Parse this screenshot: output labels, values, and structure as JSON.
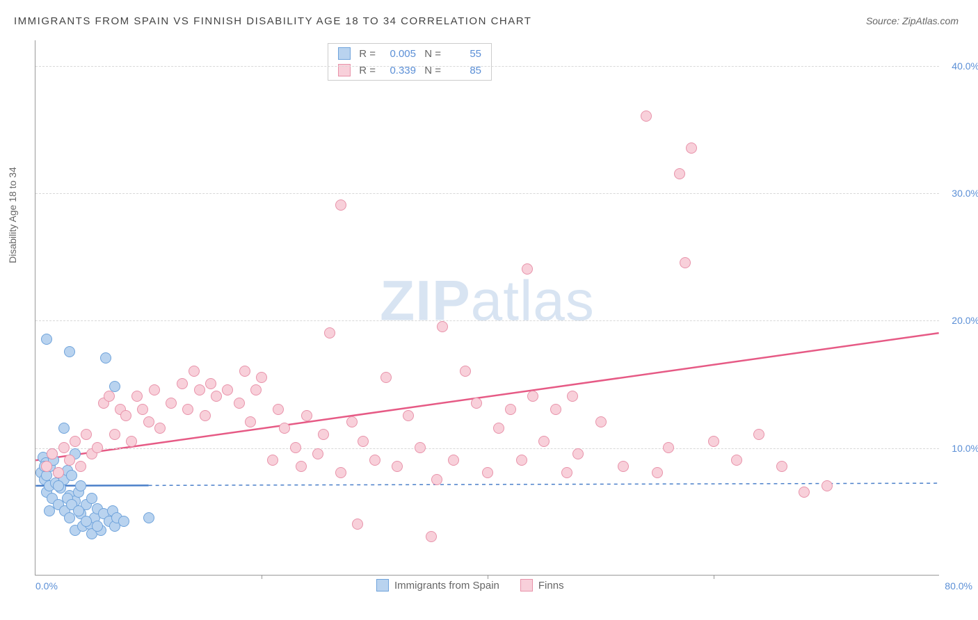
{
  "title": "IMMIGRANTS FROM SPAIN VS FINNISH DISABILITY AGE 18 TO 34 CORRELATION CHART",
  "source": "Source: ZipAtlas.com",
  "y_axis_label": "Disability Age 18 to 34",
  "watermark_a": "ZIP",
  "watermark_b": "atlas",
  "chart": {
    "type": "scatter",
    "xlim": [
      0,
      80
    ],
    "ylim": [
      0,
      42
    ],
    "x_ticks": [
      0,
      20,
      40,
      60,
      80
    ],
    "x_tick_labels": [
      "0.0%",
      "",
      "",
      "",
      "80.0%"
    ],
    "y_ticks": [
      10,
      20,
      30,
      40
    ],
    "y_tick_labels": [
      "10.0%",
      "20.0%",
      "30.0%",
      "40.0%"
    ],
    "background_color": "#ffffff",
    "grid_color": "#d8d8d8",
    "axis_color": "#999999",
    "tick_label_color": "#5b8fd6",
    "marker_radius": 8,
    "series": [
      {
        "name": "Immigrants from Spain",
        "fill": "#b9d3ef",
        "stroke": "#6fa3db",
        "trend_color": "#4a7fc9",
        "trend_dash": "5,5",
        "trend_solid_until_x": 10,
        "R": "0.005",
        "N": "55",
        "trend": {
          "y_at_xmin": 7.0,
          "y_at_xmax": 7.2
        },
        "points": [
          [
            0.5,
            8.0
          ],
          [
            0.7,
            9.2
          ],
          [
            0.8,
            7.5
          ],
          [
            0.9,
            8.8
          ],
          [
            1.0,
            6.5
          ],
          [
            1.0,
            7.8
          ],
          [
            1.2,
            7.0
          ],
          [
            1.3,
            8.5
          ],
          [
            1.5,
            6.0
          ],
          [
            1.6,
            9.0
          ],
          [
            1.8,
            7.2
          ],
          [
            2.0,
            5.5
          ],
          [
            2.0,
            8.0
          ],
          [
            2.2,
            6.8
          ],
          [
            2.5,
            7.5
          ],
          [
            2.6,
            5.0
          ],
          [
            2.8,
            8.2
          ],
          [
            3.0,
            6.2
          ],
          [
            3.0,
            4.5
          ],
          [
            3.2,
            7.8
          ],
          [
            3.5,
            5.8
          ],
          [
            3.5,
            3.5
          ],
          [
            3.8,
            6.5
          ],
          [
            4.0,
            4.8
          ],
          [
            4.0,
            7.0
          ],
          [
            4.2,
            3.8
          ],
          [
            4.5,
            5.5
          ],
          [
            4.8,
            4.0
          ],
          [
            5.0,
            6.0
          ],
          [
            5.0,
            3.2
          ],
          [
            5.2,
            4.5
          ],
          [
            5.5,
            5.2
          ],
          [
            5.8,
            3.5
          ],
          [
            6.0,
            4.8
          ],
          [
            6.2,
            17.0
          ],
          [
            6.5,
            4.2
          ],
          [
            6.8,
            5.0
          ],
          [
            7.0,
            3.8
          ],
          [
            7.0,
            14.8
          ],
          [
            7.2,
            4.5
          ],
          [
            1.0,
            18.5
          ],
          [
            2.5,
            11.5
          ],
          [
            3.0,
            17.5
          ],
          [
            3.5,
            9.5
          ],
          [
            0.8,
            8.5
          ],
          [
            1.5,
            9.5
          ],
          [
            2.0,
            7.0
          ],
          [
            2.8,
            6.0
          ],
          [
            3.2,
            5.5
          ],
          [
            3.8,
            5.0
          ],
          [
            4.5,
            4.2
          ],
          [
            5.5,
            3.8
          ],
          [
            7.8,
            4.2
          ],
          [
            10.0,
            4.5
          ],
          [
            1.2,
            5.0
          ]
        ]
      },
      {
        "name": "Finns",
        "fill": "#f8d0da",
        "stroke": "#e893aa",
        "trend_color": "#e65a85",
        "trend_dash": "",
        "trend_solid_until_x": 80,
        "R": "0.339",
        "N": "85",
        "trend": {
          "y_at_xmin": 9.0,
          "y_at_xmax": 19.0
        },
        "points": [
          [
            1.0,
            8.5
          ],
          [
            1.5,
            9.5
          ],
          [
            2.0,
            8.0
          ],
          [
            2.5,
            10.0
          ],
          [
            3.0,
            9.0
          ],
          [
            3.5,
            10.5
          ],
          [
            4.0,
            8.5
          ],
          [
            4.5,
            11.0
          ],
          [
            5.0,
            9.5
          ],
          [
            5.5,
            10.0
          ],
          [
            6.0,
            13.5
          ],
          [
            6.5,
            14.0
          ],
          [
            7.0,
            11.0
          ],
          [
            7.5,
            13.0
          ],
          [
            8.0,
            12.5
          ],
          [
            8.5,
            10.5
          ],
          [
            9.0,
            14.0
          ],
          [
            9.5,
            13.0
          ],
          [
            10.0,
            12.0
          ],
          [
            10.5,
            14.5
          ],
          [
            11.0,
            11.5
          ],
          [
            12.0,
            13.5
          ],
          [
            13.0,
            15.0
          ],
          [
            13.5,
            13.0
          ],
          [
            14.0,
            16.0
          ],
          [
            14.5,
            14.5
          ],
          [
            15.0,
            12.5
          ],
          [
            15.5,
            15.0
          ],
          [
            16.0,
            14.0
          ],
          [
            17.0,
            14.5
          ],
          [
            18.0,
            13.5
          ],
          [
            18.5,
            16.0
          ],
          [
            19.0,
            12.0
          ],
          [
            19.5,
            14.5
          ],
          [
            20.0,
            15.5
          ],
          [
            21.0,
            9.0
          ],
          [
            21.5,
            13.0
          ],
          [
            22.0,
            11.5
          ],
          [
            23.0,
            10.0
          ],
          [
            23.5,
            8.5
          ],
          [
            24.0,
            12.5
          ],
          [
            25.0,
            9.5
          ],
          [
            25.5,
            11.0
          ],
          [
            26.0,
            19.0
          ],
          [
            27.0,
            8.0
          ],
          [
            27.0,
            29.0
          ],
          [
            28.0,
            12.0
          ],
          [
            28.5,
            4.0
          ],
          [
            29.0,
            10.5
          ],
          [
            30.0,
            9.0
          ],
          [
            31.0,
            15.5
          ],
          [
            32.0,
            8.5
          ],
          [
            33.0,
            12.5
          ],
          [
            34.0,
            10.0
          ],
          [
            35.0,
            3.0
          ],
          [
            35.5,
            7.5
          ],
          [
            36.0,
            19.5
          ],
          [
            37.0,
            9.0
          ],
          [
            38.0,
            16.0
          ],
          [
            39.0,
            13.5
          ],
          [
            40.0,
            8.0
          ],
          [
            41.0,
            11.5
          ],
          [
            42.0,
            13.0
          ],
          [
            43.0,
            9.0
          ],
          [
            43.5,
            24.0
          ],
          [
            44.0,
            14.0
          ],
          [
            45.0,
            10.5
          ],
          [
            46.0,
            13.0
          ],
          [
            47.0,
            8.0
          ],
          [
            47.5,
            14.0
          ],
          [
            48.0,
            9.5
          ],
          [
            50.0,
            12.0
          ],
          [
            52.0,
            8.5
          ],
          [
            54.0,
            36.0
          ],
          [
            55.0,
            8.0
          ],
          [
            56.0,
            10.0
          ],
          [
            57.0,
            31.5
          ],
          [
            57.5,
            24.5
          ],
          [
            58.0,
            33.5
          ],
          [
            60.0,
            10.5
          ],
          [
            62.0,
            9.0
          ],
          [
            64.0,
            11.0
          ],
          [
            66.0,
            8.5
          ],
          [
            68.0,
            6.5
          ],
          [
            70.0,
            7.0
          ]
        ]
      }
    ]
  },
  "legend": {
    "series1": "Immigrants from Spain",
    "series2": "Finns"
  },
  "stats_labels": {
    "R": "R =",
    "N": "N ="
  }
}
